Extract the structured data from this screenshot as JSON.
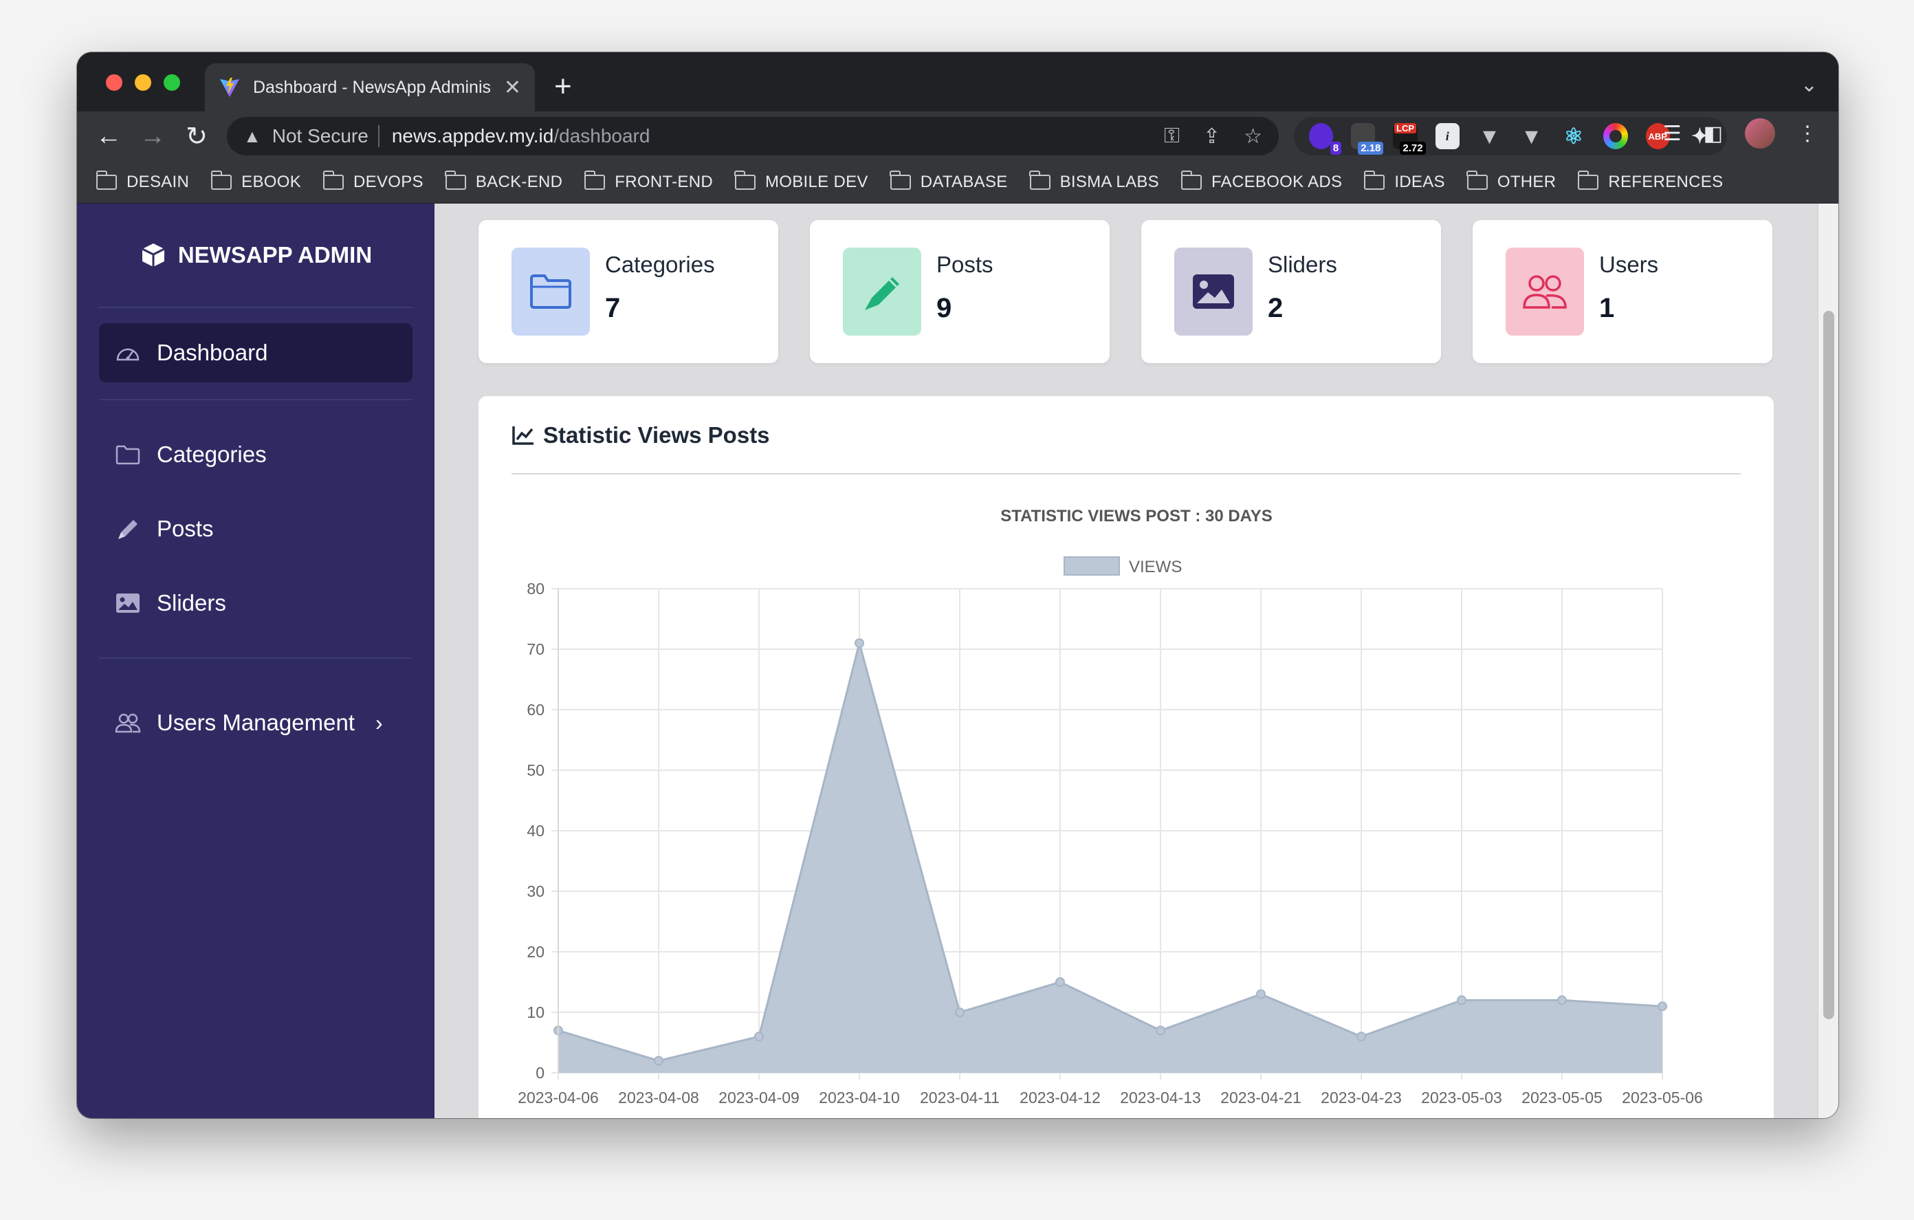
{
  "browser": {
    "tab_title": "Dashboard - NewsApp Adminis",
    "new_tab": "+",
    "omnibox": {
      "security": "Not Secure",
      "host": "news.appdev.my.id",
      "path": "/dashboard"
    },
    "extensions": [
      {
        "name": "extension-1",
        "badge": "8"
      },
      {
        "name": "extension-2",
        "badge": "2.18"
      },
      {
        "name": "lcp-extension",
        "label": "LCP",
        "badge": "2.72"
      },
      {
        "name": "info-extension",
        "label": "i"
      },
      {
        "name": "vue-extension-1"
      },
      {
        "name": "vue-extension-2"
      },
      {
        "name": "react-extension"
      },
      {
        "name": "color-extension"
      },
      {
        "name": "adblock-extension",
        "label": "ABP"
      },
      {
        "name": "puzzle-extension"
      }
    ],
    "bookmarks": [
      "DESAIN",
      "EBOOK",
      "DEVOPS",
      "BACK-END",
      "FRONT-END",
      "MOBILE DEV",
      "DATABASE",
      "BISMA LABS",
      "FACEBOOK ADS",
      "IDEAS",
      "OTHER",
      "REFERENCES"
    ]
  },
  "sidebar": {
    "brand": "NEWSAPP ADMIN",
    "items": [
      {
        "label": "Dashboard",
        "icon": "gauge-icon"
      },
      {
        "label": "Categories",
        "icon": "folder-icon"
      },
      {
        "label": "Posts",
        "icon": "pencil-icon"
      },
      {
        "label": "Sliders",
        "icon": "image-icon"
      },
      {
        "label": "Users Management",
        "icon": "users-icon"
      }
    ]
  },
  "stats": [
    {
      "label": "Categories",
      "value": "7",
      "color": "#c7d7f5",
      "icon_color": "#3b6fd4"
    },
    {
      "label": "Posts",
      "value": "9",
      "color": "#b8ead5",
      "icon_color": "#1fb27a"
    },
    {
      "label": "Sliders",
      "value": "2",
      "color": "#cccbdd",
      "icon_color": "#2f2b62"
    },
    {
      "label": "Users",
      "value": "1",
      "color": "#f7c3cf",
      "icon_color": "#e0305c"
    }
  ],
  "chart_card": {
    "title": "Statistic Views Posts"
  },
  "chart_data": {
    "type": "area",
    "title": "STATISTIC VIEWS POST : 30 DAYS",
    "x": [
      "2023-04-06",
      "2023-04-08",
      "2023-04-09",
      "2023-04-10",
      "2023-04-11",
      "2023-04-12",
      "2023-04-13",
      "2023-04-21",
      "2023-04-23",
      "2023-05-03",
      "2023-05-05",
      "2023-05-06"
    ],
    "series": [
      {
        "name": "VIEWS",
        "values": [
          7,
          2,
          6,
          71,
          10,
          15,
          7,
          13,
          6,
          12,
          12,
          11
        ],
        "fill": "#bcc8d6",
        "stroke": "#a7b5c6"
      }
    ],
    "ylim": [
      0,
      80
    ],
    "yticks": [
      0,
      10,
      20,
      30,
      40,
      50,
      60,
      70,
      80
    ],
    "grid": true,
    "legend": "top"
  }
}
